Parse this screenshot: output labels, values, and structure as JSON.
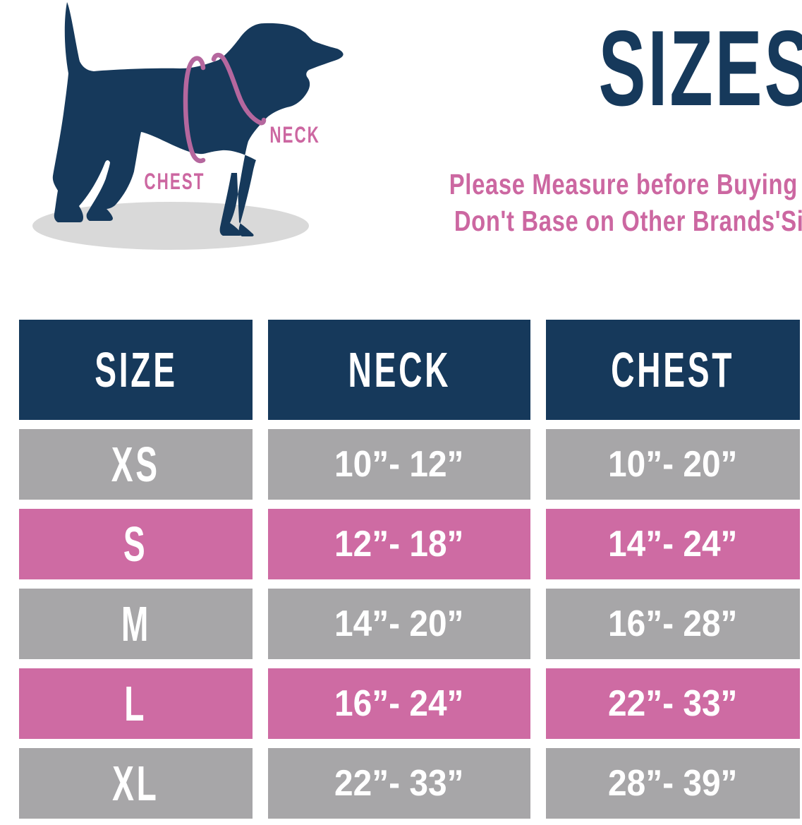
{
  "diagram": {
    "neck_label": "NECK",
    "chest_label": "CHEST"
  },
  "header": {
    "title": "SIZES",
    "subtitle_line1": "Please Measure before Buying",
    "subtitle_line2": "Don't Base on Other Brands'Sizes"
  },
  "table": {
    "columns": [
      "SIZE",
      "NECK",
      "CHEST"
    ],
    "rows": [
      {
        "size": "XS",
        "neck": "10”- 12”",
        "chest": "10”- 20”",
        "variant": "gray"
      },
      {
        "size": "S",
        "neck": "12”- 18”",
        "chest": "14”- 24”",
        "variant": "pink"
      },
      {
        "size": "M",
        "neck": "14”- 20”",
        "chest": "16”- 28”",
        "variant": "gray"
      },
      {
        "size": "L",
        "neck": "16”- 24”",
        "chest": "22”- 33”",
        "variant": "pink"
      },
      {
        "size": "XL",
        "neck": "22”- 33”",
        "chest": "28”- 39”",
        "variant": "gray"
      }
    ]
  },
  "colors": {
    "navy": "#16395b",
    "row_pink": "#ce6ba3",
    "row_gray": "#a7a6a8",
    "text_pink": "#cc67a1",
    "strap_pink": "#b5679e",
    "shadow_gray": "#d9d9d9",
    "background": "#ffffff"
  }
}
